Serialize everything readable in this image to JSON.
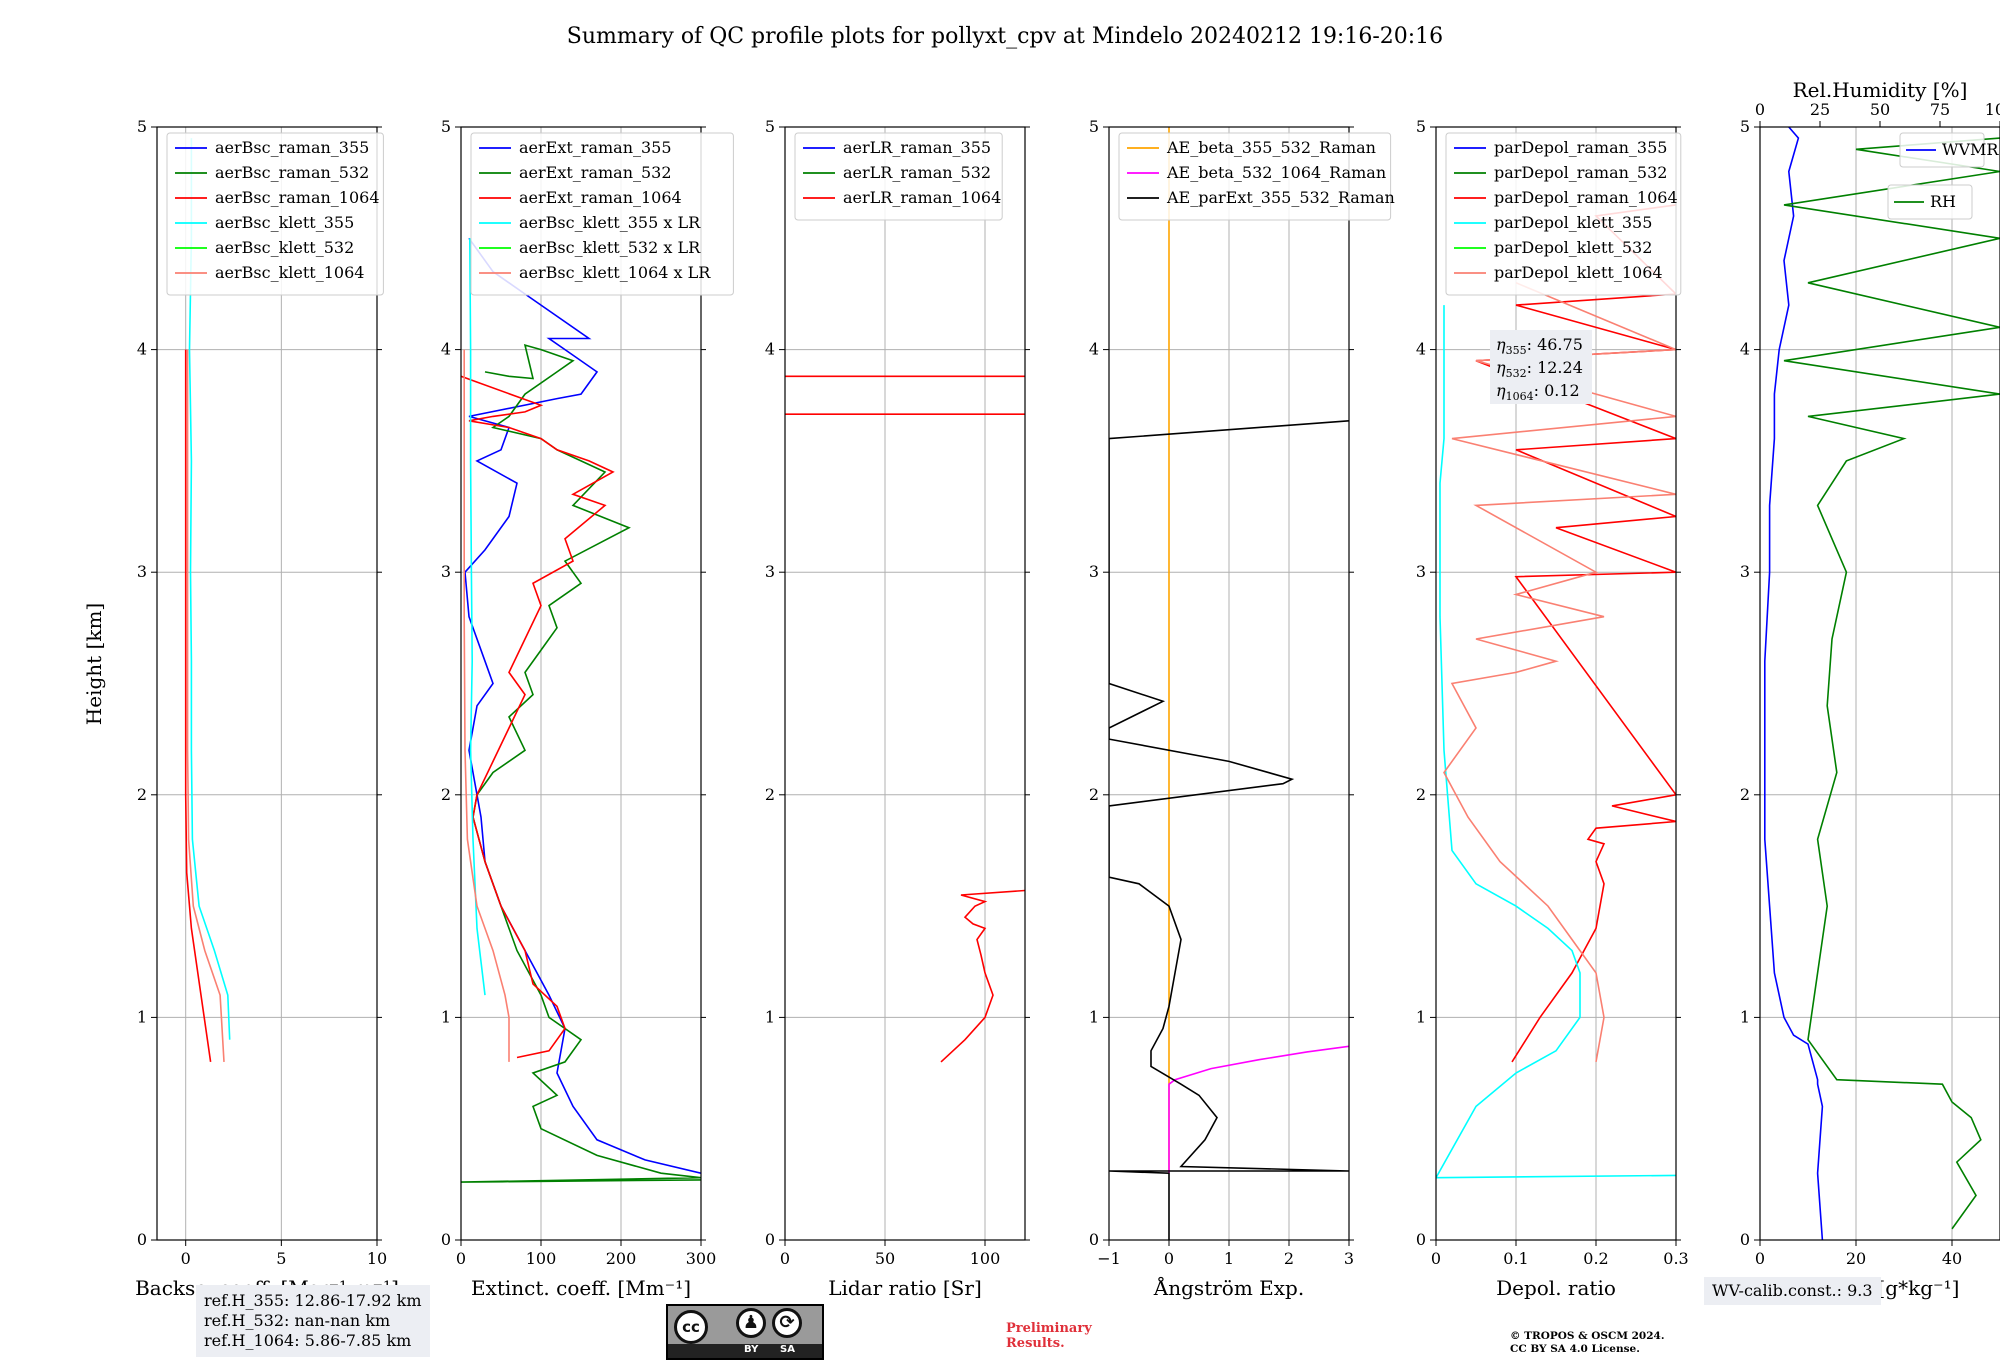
{
  "title": "Summary of QC profile plots for pollyxt_cpv at Mindelo 20240212 19:16-20:16",
  "y_axis_label": "Height [km]",
  "chart_data": [
    {
      "type": "line",
      "xlabel": "Backsc. coeff. [Msr⁻¹ m⁻¹]",
      "ylabel": "Height [km]",
      "xlim": [
        -1.5,
        10
      ],
      "ylim": [
        0,
        5
      ],
      "xticks": [
        0,
        5,
        10
      ],
      "yticks": [
        0,
        1,
        2,
        3,
        4,
        5
      ],
      "grid": true,
      "legend_position": "top-left",
      "series": [
        {
          "name": "aerBsc_raman_355",
          "color": "#0000ff",
          "x": [],
          "y": []
        },
        {
          "name": "aerBsc_raman_532",
          "color": "#008000",
          "x": [],
          "y": []
        },
        {
          "name": "aerBsc_raman_1064",
          "color": "#ff0000",
          "x": [
            1.3,
            0.8,
            0.3,
            0.05,
            0.0,
            0.0,
            0.0,
            0.0,
            0.0
          ],
          "y": [
            0.8,
            1.1,
            1.4,
            1.65,
            2.0,
            2.5,
            3.0,
            3.5,
            4.0
          ]
        },
        {
          "name": "aerBsc_klett_355",
          "color": "#00ffff",
          "x": [
            2.3,
            2.2,
            1.5,
            0.7,
            0.35,
            0.3,
            0.3,
            0.25,
            0.3,
            0.2,
            0.3,
            0.3
          ],
          "y": [
            0.9,
            1.1,
            1.3,
            1.5,
            1.8,
            2.2,
            2.6,
            3.0,
            3.5,
            4.0,
            4.5,
            4.95
          ]
        },
        {
          "name": "aerBsc_klett_532",
          "color": "#00ff00",
          "x": [],
          "y": []
        },
        {
          "name": "aerBsc_klett_1064",
          "color": "#fa8072",
          "x": [
            2.0,
            1.8,
            1.0,
            0.4,
            0.15,
            0.1,
            0.1,
            0.1,
            0.1
          ],
          "y": [
            0.8,
            1.1,
            1.3,
            1.5,
            1.8,
            2.2,
            2.8,
            3.4,
            4.0
          ]
        }
      ]
    },
    {
      "type": "line",
      "xlabel": "Extinct. coeff. [Mm⁻¹]",
      "ylabel": "Height [km]",
      "xlim": [
        0,
        300
      ],
      "ylim": [
        0,
        5
      ],
      "xticks": [
        0,
        100,
        200,
        300
      ],
      "yticks": [
        0,
        1,
        2,
        3,
        4,
        5
      ],
      "grid": true,
      "legend_position": "top-left",
      "series": [
        {
          "name": "aerExt_raman_355",
          "color": "#0000ff",
          "x": [
            300,
            230,
            170,
            140,
            120,
            130,
            110,
            80,
            50,
            30,
            25,
            20,
            10,
            20,
            40,
            30,
            10,
            5,
            30,
            60,
            70,
            20,
            50,
            60,
            10,
            120,
            150,
            160,
            170,
            130,
            110,
            160,
            100,
            80,
            40,
            10
          ],
          "y": [
            0.3,
            0.36,
            0.45,
            0.6,
            0.75,
            0.95,
            1.1,
            1.3,
            1.5,
            1.7,
            1.9,
            2.0,
            2.2,
            2.4,
            2.5,
            2.6,
            2.8,
            3.0,
            3.1,
            3.25,
            3.4,
            3.5,
            3.55,
            3.65,
            3.7,
            3.78,
            3.8,
            3.85,
            3.9,
            4.0,
            4.05,
            4.05,
            4.2,
            4.25,
            4.35,
            4.5
          ]
        },
        {
          "name": "aerExt_raman_532",
          "color": "#008000",
          "x": [
            300,
            0,
            300,
            250,
            170,
            100,
            90,
            120,
            90,
            130,
            150,
            110,
            100,
            70,
            50,
            30,
            15,
            20,
            40,
            80,
            60,
            90,
            80,
            100,
            120,
            110,
            150,
            130,
            210,
            140,
            180,
            150,
            120,
            100,
            40,
            60,
            80,
            120,
            140,
            100,
            80,
            90,
            60,
            30
          ],
          "y": [
            0.27,
            0.26,
            0.28,
            0.3,
            0.38,
            0.5,
            0.6,
            0.65,
            0.75,
            0.8,
            0.9,
            1.0,
            1.1,
            1.3,
            1.5,
            1.7,
            1.9,
            2.0,
            2.1,
            2.2,
            2.35,
            2.45,
            2.55,
            2.65,
            2.75,
            2.85,
            2.95,
            3.05,
            3.2,
            3.3,
            3.45,
            3.5,
            3.55,
            3.6,
            3.65,
            3.7,
            3.8,
            3.9,
            3.95,
            4.0,
            4.02,
            3.87,
            3.88,
            3.9
          ]
        },
        {
          "name": "aerExt_raman_1064",
          "color": "#ff0000",
          "x": [
            70,
            110,
            130,
            120,
            90,
            80,
            50,
            30,
            15,
            20,
            40,
            60,
            80,
            60,
            80,
            100,
            90,
            140,
            130,
            180,
            140,
            190,
            160,
            120,
            100,
            60,
            10,
            40,
            80,
            100,
            0
          ],
          "y": [
            0.82,
            0.85,
            0.95,
            1.05,
            1.15,
            1.3,
            1.5,
            1.7,
            1.9,
            2.0,
            2.15,
            2.3,
            2.45,
            2.55,
            2.7,
            2.85,
            2.95,
            3.05,
            3.15,
            3.3,
            3.35,
            3.45,
            3.5,
            3.55,
            3.6,
            3.65,
            3.68,
            3.7,
            3.72,
            3.75,
            3.88
          ]
        },
        {
          "name": "aerBsc_klett_355 x LR",
          "color": "#00ffff",
          "x": [
            30,
            20,
            15,
            12,
            14,
            13,
            12,
            12,
            11
          ],
          "y": [
            1.1,
            1.4,
            1.8,
            2.2,
            2.6,
            3.0,
            3.5,
            4.0,
            4.5
          ]
        },
        {
          "name": "aerBsc_klett_532 x LR",
          "color": "#00ff00",
          "x": [],
          "y": []
        },
        {
          "name": "aerBsc_klett_1064 x LR",
          "color": "#fa8072",
          "x": [
            60,
            60,
            55,
            40,
            20,
            8,
            5,
            4,
            4,
            4
          ],
          "y": [
            0.8,
            1.0,
            1.1,
            1.3,
            1.5,
            1.8,
            2.2,
            2.8,
            3.4,
            4.0
          ]
        }
      ]
    },
    {
      "type": "line",
      "xlabel": "Lidar ratio [Sr]",
      "ylabel": "Height [km]",
      "xlim": [
        0,
        120
      ],
      "ylim": [
        0,
        5
      ],
      "xticks": [
        0,
        50,
        100
      ],
      "yticks": [
        0,
        1,
        2,
        3,
        4,
        5
      ],
      "grid": true,
      "legend_position": "top-left",
      "series": [
        {
          "name": "aerLR_raman_355",
          "color": "#0000ff",
          "x": [],
          "y": []
        },
        {
          "name": "aerLR_raman_532",
          "color": "#008000",
          "x": [],
          "y": []
        },
        {
          "name": "aerLR_raman_1064",
          "color": "#ff0000",
          "x": [
            78,
            90,
            100,
            104,
            100,
            98,
            96,
            100,
            94,
            90,
            95,
            100,
            88,
            120
          ],
          "y": [
            0.8,
            0.9,
            1.0,
            1.1,
            1.2,
            1.28,
            1.35,
            1.4,
            1.42,
            1.45,
            1.5,
            1.52,
            1.55,
            1.57
          ]
        },
        {
          "name": "aerLR_raman_1064 (layer 3.71 km)",
          "color": "#ff0000",
          "x": [
            0,
            120
          ],
          "y": [
            3.71,
            3.71
          ]
        },
        {
          "name": "aerLR_raman_1064 (layer 3.88 km)",
          "color": "#ff0000",
          "x": [
            0,
            120
          ],
          "y": [
            3.88,
            3.88
          ]
        }
      ]
    },
    {
      "type": "line",
      "xlabel": "Ångström Exp.",
      "ylabel": "Height [km]",
      "xlim": [
        -1,
        3
      ],
      "ylim": [
        0,
        5
      ],
      "xticks": [
        -1,
        0,
        1,
        2,
        3
      ],
      "yticks": [
        0,
        1,
        2,
        3,
        4,
        5
      ],
      "grid": true,
      "legend_position": "top-left",
      "series": [
        {
          "name": "AE_beta_355_532_Raman",
          "color": "#ffa500",
          "x": [
            0,
            0,
            0
          ],
          "y": [
            0.3,
            2.5,
            5.0
          ]
        },
        {
          "name": "AE_beta_532_1064_Raman",
          "color": "#ff00ff",
          "x": [
            0,
            0,
            0.1,
            0.7,
            1.5,
            2.3,
            3.0
          ],
          "y": [
            0.3,
            0.7,
            0.72,
            0.77,
            0.81,
            0.845,
            0.87
          ]
        },
        {
          "name": "AE_parExt_355_532_Raman",
          "color": "#000000",
          "x": [
            0,
            0,
            -1,
            3,
            0.2,
            0.6,
            0.8,
            0.5,
            0.2,
            -0.3,
            -0.3,
            -0.1,
            0.0,
            0.1,
            0.2,
            0.0,
            -0.5,
            -1,
            -1,
            1.9,
            2.05,
            1.0,
            -1,
            -1,
            -0.1,
            -1,
            -1,
            3
          ],
          "y": [
            0.0,
            0.3,
            0.31,
            0.31,
            0.33,
            0.45,
            0.55,
            0.65,
            0.7,
            0.78,
            0.85,
            0.95,
            1.05,
            1.2,
            1.35,
            1.5,
            1.6,
            1.63,
            1.95,
            2.05,
            2.07,
            2.15,
            2.25,
            2.3,
            2.42,
            2.5,
            3.6,
            3.68
          ]
        }
      ]
    },
    {
      "type": "line",
      "xlabel": "Depol. ratio",
      "ylabel": "Height [km]",
      "xlim": [
        0,
        0.3
      ],
      "ylim": [
        0,
        5
      ],
      "xticks": [
        0.0,
        0.1,
        0.2,
        0.3
      ],
      "yticks": [
        0,
        1,
        2,
        3,
        4,
        5
      ],
      "grid": true,
      "legend_position": "top-left",
      "series": [
        {
          "name": "parDepol_raman_355",
          "color": "#0000ff",
          "x": [],
          "y": []
        },
        {
          "name": "parDepol_raman_532",
          "color": "#008000",
          "x": [],
          "y": []
        },
        {
          "name": "parDepol_raman_1064",
          "color": "#ff0000",
          "x": [
            0.095,
            0.13,
            0.17,
            0.2,
            0.21,
            0.2,
            0.21,
            0.19,
            0.2,
            0.3,
            0.22,
            0.3,
            0.1,
            0.3,
            0.15,
            0.3,
            0.1,
            0.3,
            0.05,
            0.3,
            0.1,
            0.3,
            0.2,
            0.3
          ],
          "y": [
            0.8,
            1.0,
            1.2,
            1.4,
            1.6,
            1.7,
            1.78,
            1.8,
            1.85,
            1.88,
            1.95,
            2.0,
            2.98,
            3.0,
            3.2,
            3.25,
            3.55,
            3.6,
            3.95,
            4.0,
            4.2,
            4.25,
            4.6,
            4.65
          ]
        },
        {
          "name": "parDepol_klett_355",
          "color": "#00ffff",
          "x": [
            0.3,
            0.0,
            0.05,
            0.1,
            0.15,
            0.18,
            0.18,
            0.17,
            0.14,
            0.1,
            0.05,
            0.02,
            0.01,
            0.005,
            0.005,
            0.01,
            0.01
          ],
          "y": [
            0.29,
            0.28,
            0.6,
            0.75,
            0.85,
            1.0,
            1.2,
            1.3,
            1.4,
            1.5,
            1.6,
            1.75,
            2.2,
            2.8,
            3.4,
            3.6,
            4.2
          ]
        },
        {
          "name": "parDepol_klett_532",
          "color": "#00ff00",
          "x": [],
          "y": []
        },
        {
          "name": "parDepol_klett_1064",
          "color": "#fa8072",
          "x": [
            0.2,
            0.21,
            0.2,
            0.17,
            0.14,
            0.08,
            0.04,
            0.01,
            0.05,
            0.02,
            0.1,
            0.15,
            0.05,
            0.21,
            0.1,
            0.2,
            0.05,
            0.3,
            0.02,
            0.3,
            0.05,
            0.3,
            0.1
          ],
          "y": [
            0.8,
            1.0,
            1.2,
            1.35,
            1.5,
            1.7,
            1.9,
            2.1,
            2.3,
            2.5,
            2.55,
            2.6,
            2.7,
            2.8,
            2.9,
            3.0,
            3.3,
            3.35,
            3.6,
            3.7,
            3.95,
            4.0,
            4.3
          ]
        }
      ]
    },
    {
      "type": "line",
      "xlabel": "WVMR [g*kg⁻¹]",
      "x2label": "Rel.Humidity [%]",
      "ylabel": "Height [km]",
      "xlim": [
        0,
        50
      ],
      "x2lim": [
        0,
        100
      ],
      "ylim": [
        0,
        5
      ],
      "xticks": [
        0,
        20,
        40
      ],
      "x2ticks": [
        0,
        25,
        50,
        75,
        100
      ],
      "yticks": [
        0,
        1,
        2,
        3,
        4,
        5
      ],
      "grid": true,
      "legend_position": "top-right",
      "series": [
        {
          "name": "WVMR",
          "color": "#0000ff",
          "x": [
            13,
            12,
            13,
            12,
            12,
            11,
            10,
            7,
            5,
            3,
            2,
            1,
            1,
            1,
            2,
            2,
            3,
            3,
            4,
            6,
            5,
            7,
            6,
            8,
            6
          ],
          "y": [
            0.0,
            0.3,
            0.6,
            0.7,
            0.72,
            0.8,
            0.88,
            0.92,
            1.0,
            1.2,
            1.5,
            1.8,
            2.2,
            2.6,
            3.0,
            3.3,
            3.6,
            3.8,
            4.0,
            4.2,
            4.4,
            4.6,
            4.8,
            4.95,
            5.0
          ]
        },
        {
          "name": "RH",
          "color": "#008000",
          "x": [
            40,
            45,
            41,
            46,
            44,
            40,
            38,
            16,
            10,
            12,
            14,
            12,
            16,
            14,
            15,
            18,
            12,
            18,
            30,
            10,
            50,
            5,
            50,
            10,
            50,
            5,
            50,
            20,
            50
          ],
          "y": [
            0.05,
            0.2,
            0.35,
            0.45,
            0.55,
            0.62,
            0.7,
            0.72,
            0.9,
            1.2,
            1.5,
            1.8,
            2.1,
            2.4,
            2.7,
            3.0,
            3.3,
            3.5,
            3.6,
            3.7,
            3.8,
            3.95,
            4.1,
            4.3,
            4.5,
            4.65,
            4.8,
            4.9,
            4.95
          ]
        }
      ]
    }
  ],
  "annotations": {
    "eta": [
      {
        "symbol": "η",
        "sub": "355",
        "value": ": 46.75"
      },
      {
        "symbol": "η",
        "sub": "532",
        "value": ": 12.24"
      },
      {
        "symbol": "η",
        "sub": "1064",
        "value": ": 0.12"
      }
    ]
  },
  "ref_heights": {
    "lines": [
      "ref.H_355: 12.86-17.92 km",
      "ref.H_532: nan-nan km",
      "ref.H_1064: 5.86-7.85 km"
    ]
  },
  "wv_calib": {
    "text": "WV-calib.const.: 9.3"
  },
  "license_badge": {
    "cc": "cc",
    "by": "BY",
    "sa": "SA"
  },
  "preliminary": {
    "lines": [
      "Preliminary",
      "Results."
    ]
  },
  "copyright": {
    "lines": [
      "© TROPOS & OSCM 2024.",
      "CC BY SA 4.0 License."
    ]
  }
}
